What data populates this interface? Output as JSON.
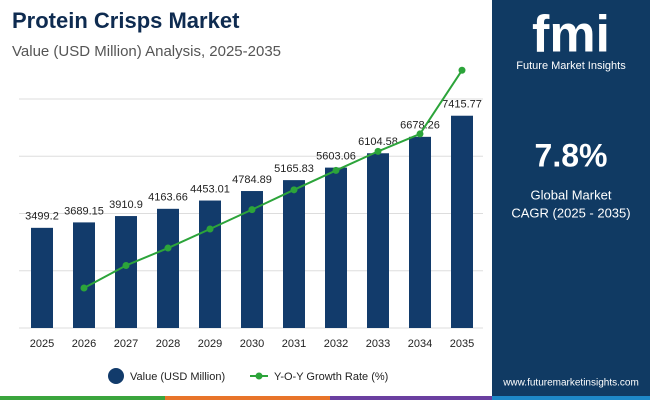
{
  "chart_data": {
    "type": "bar_line",
    "title": "Protein Crisps Market",
    "subtitle": "Value (USD Million) Analysis, 2025-2035",
    "categories": [
      "2025",
      "2026",
      "2027",
      "2028",
      "2029",
      "2030",
      "2031",
      "2032",
      "2033",
      "2034",
      "2035"
    ],
    "series": [
      {
        "name": "Value (USD Million)",
        "color": "#123b6b",
        "values": [
          3499.2,
          3689.15,
          3910.9,
          4163.66,
          4453.01,
          4784.89,
          5165.83,
          5603.06,
          6104.58,
          6678.26,
          7415.77
        ]
      },
      {
        "name": "Y-O-Y Growth Rate (%)",
        "color": "#2ca43a",
        "axis": "y2",
        "values": [
          null,
          5.43,
          6.01,
          6.46,
          6.95,
          7.45,
          7.96,
          8.46,
          8.95,
          9.4,
          11.04
        ]
      }
    ],
    "ylim": [
      0,
      8000
    ],
    "yticks": [
      0,
      2000,
      4000,
      6000,
      8000
    ],
    "y2lim": [
      4.4,
      10.3
    ],
    "grid": true
  },
  "brand": {
    "logo": "fmi",
    "name": "Future Market Insights",
    "url": "www.futuremarketinsights.com"
  },
  "highlight": {
    "value": "7.8%",
    "line1": "Global Market",
    "line2": "CAGR (2025 - 2035)"
  }
}
